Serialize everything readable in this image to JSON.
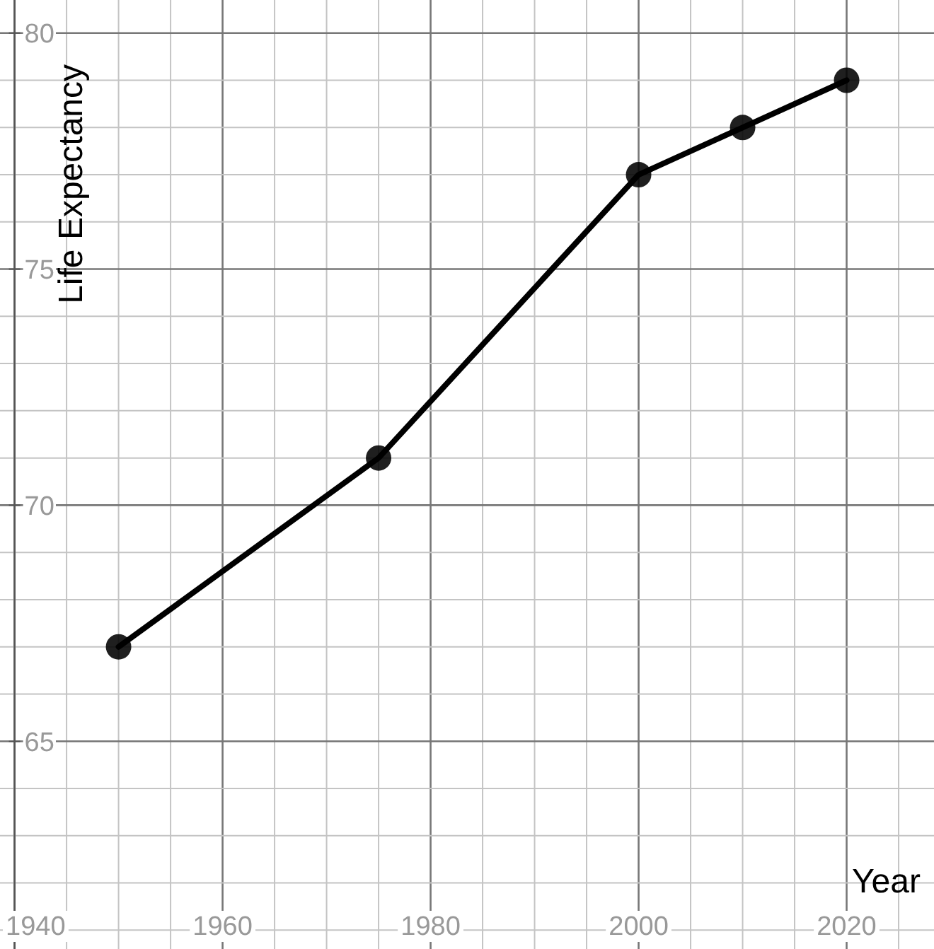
{
  "chart_data": {
    "type": "line",
    "xlabel": "Year",
    "ylabel": "Life Expectancy",
    "x": [
      1950,
      1975,
      2000,
      2010,
      2020
    ],
    "series": [
      {
        "color": "#000000",
        "values": [
          67,
          71,
          77,
          78,
          79
        ]
      }
    ],
    "xlim": [
      1938.6,
      2028.4
    ],
    "ylim": [
      60.6,
      80.7
    ],
    "xticks": [
      1940,
      {
        "value": 1945,
        "label": null
      },
      {
        "value": 1950,
        "label": null
      },
      {
        "value": 1955,
        "label": null
      },
      1960,
      {
        "value": 1965,
        "label": null
      },
      {
        "value": 1970,
        "label": null
      },
      {
        "value": 1975,
        "label": null
      },
      1980,
      {
        "value": 1985,
        "label": null
      },
      {
        "value": 1990,
        "label": null
      },
      {
        "value": 1995,
        "label": null
      },
      2000,
      {
        "value": 2005,
        "label": null
      },
      {
        "value": 2010,
        "label": null
      },
      {
        "value": 2015,
        "label": null
      },
      2020,
      {
        "value": 2025,
        "label": null
      }
    ],
    "yticks": [
      {
        "value": 61,
        "label": null
      },
      {
        "value": 62,
        "label": null
      },
      {
        "value": 63,
        "label": null
      },
      {
        "value": 64,
        "label": null
      },
      65,
      {
        "value": 66,
        "label": null
      },
      {
        "value": 67,
        "label": null
      },
      {
        "value": 68,
        "label": null
      },
      {
        "value": 69,
        "label": null
      },
      70,
      {
        "value": 71,
        "label": null
      },
      {
        "value": 72,
        "label": null
      },
      {
        "value": 73,
        "label": null
      },
      {
        "value": 74,
        "label": null
      },
      75,
      {
        "value": 76,
        "label": null
      },
      {
        "value": 77,
        "label": null
      },
      {
        "value": 78,
        "label": null
      },
      {
        "value": 79,
        "label": null
      },
      80
    ],
    "grid": true,
    "marker": "circle",
    "line_style": "solid"
  }
}
